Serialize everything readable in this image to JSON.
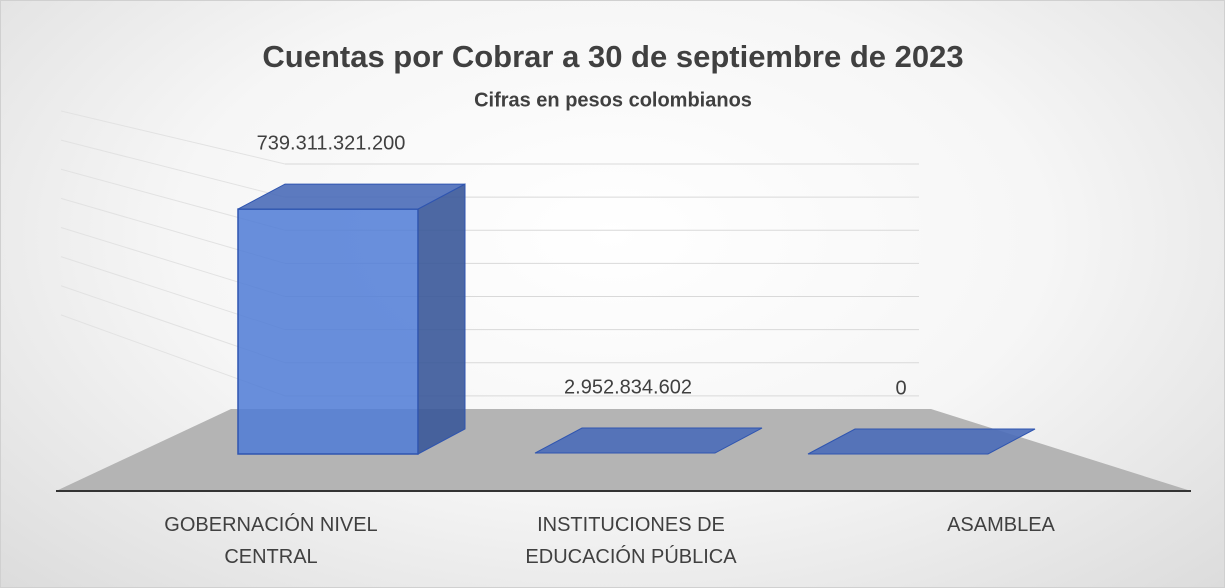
{
  "chart_data": {
    "type": "bar",
    "title": "Cuentas por Cobrar a 30 de septiembre de 2023",
    "subtitle": "Cifras en pesos colombianos",
    "categories": [
      "GOBERNACIÓN NIVEL CENTRAL",
      "INSTITUCIONES DE EDUCACIÓN PÚBLICA",
      "ASAMBLEA"
    ],
    "values": [
      739311321200,
      2952834602,
      0
    ],
    "value_labels": [
      "739.311.321.200",
      "2.952.834.602",
      "0"
    ],
    "color": "#4f7bd6",
    "ylim": [
      0,
      800000000000
    ],
    "yticks": [
      0,
      100000000000,
      200000000000,
      300000000000,
      400000000000,
      500000000000,
      600000000000,
      700000000000,
      800000000000
    ],
    "grid": true
  }
}
